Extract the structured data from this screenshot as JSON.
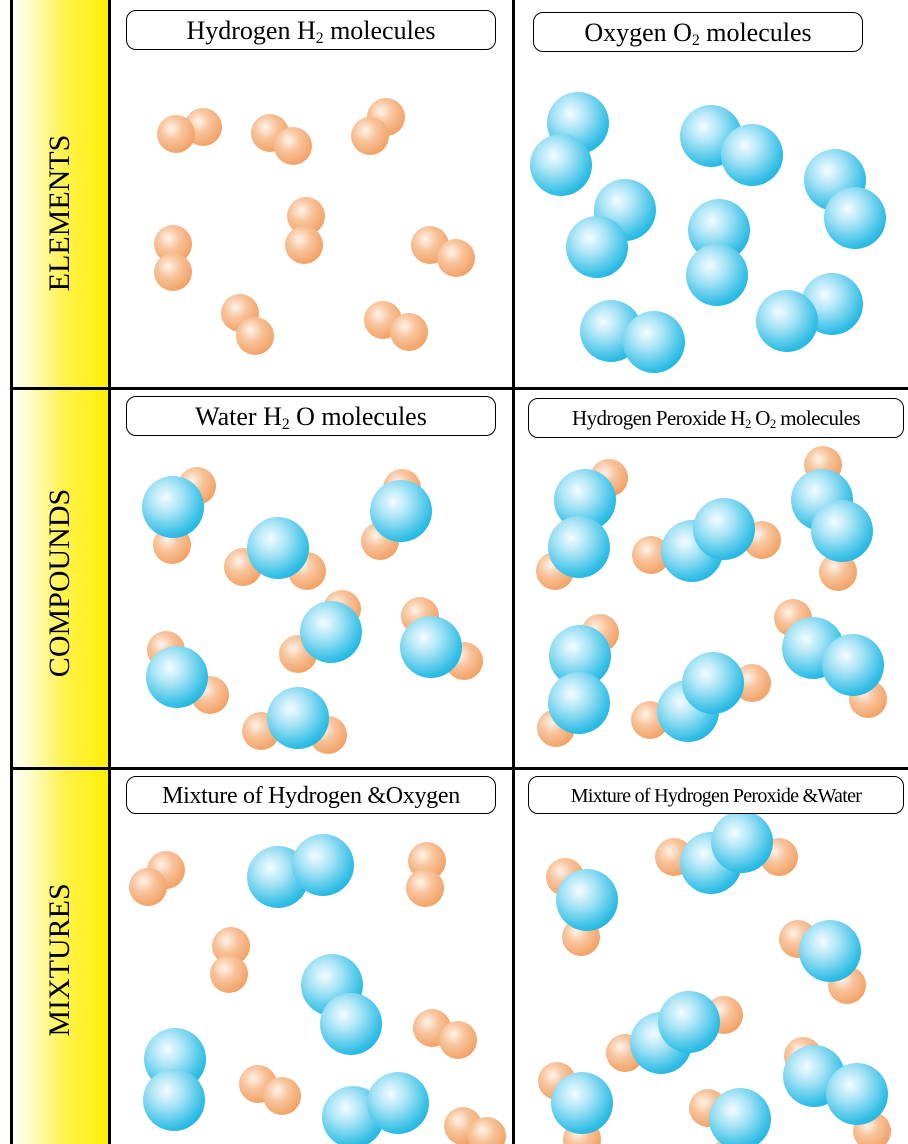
{
  "rows": [
    {
      "id": "elements",
      "label": "ELEMENTS"
    },
    {
      "id": "compounds",
      "label": "COMPOUNDS"
    },
    {
      "id": "mixtures",
      "label": "MIXTURES"
    }
  ],
  "cells": {
    "hydrogen": {
      "pre": "Hydrogen H",
      "sub": "2",
      "post": " molecules"
    },
    "oxygen": {
      "pre": "Oxygen O",
      "sub": "2",
      "post": " molecules"
    },
    "water": {
      "pre": "Water H",
      "sub": "2",
      "post": " O molecules"
    },
    "peroxide": {
      "pre": "Hydrogen Peroxide H",
      "sub": "2",
      "mid": " O",
      "sub2": "2",
      "post": " molecules"
    },
    "mix_h_o": {
      "text": "Mixture of Hydrogen &Oxygen"
    },
    "mix_hp_w": {
      "text": "Mixture of Hydrogen Peroxide &Water"
    }
  },
  "colors": {
    "hydrogen_atom": "#f2a56a",
    "oxygen_atom": "#35bfe6",
    "label_band": "#fff000",
    "grid_lines": "#000000"
  }
}
